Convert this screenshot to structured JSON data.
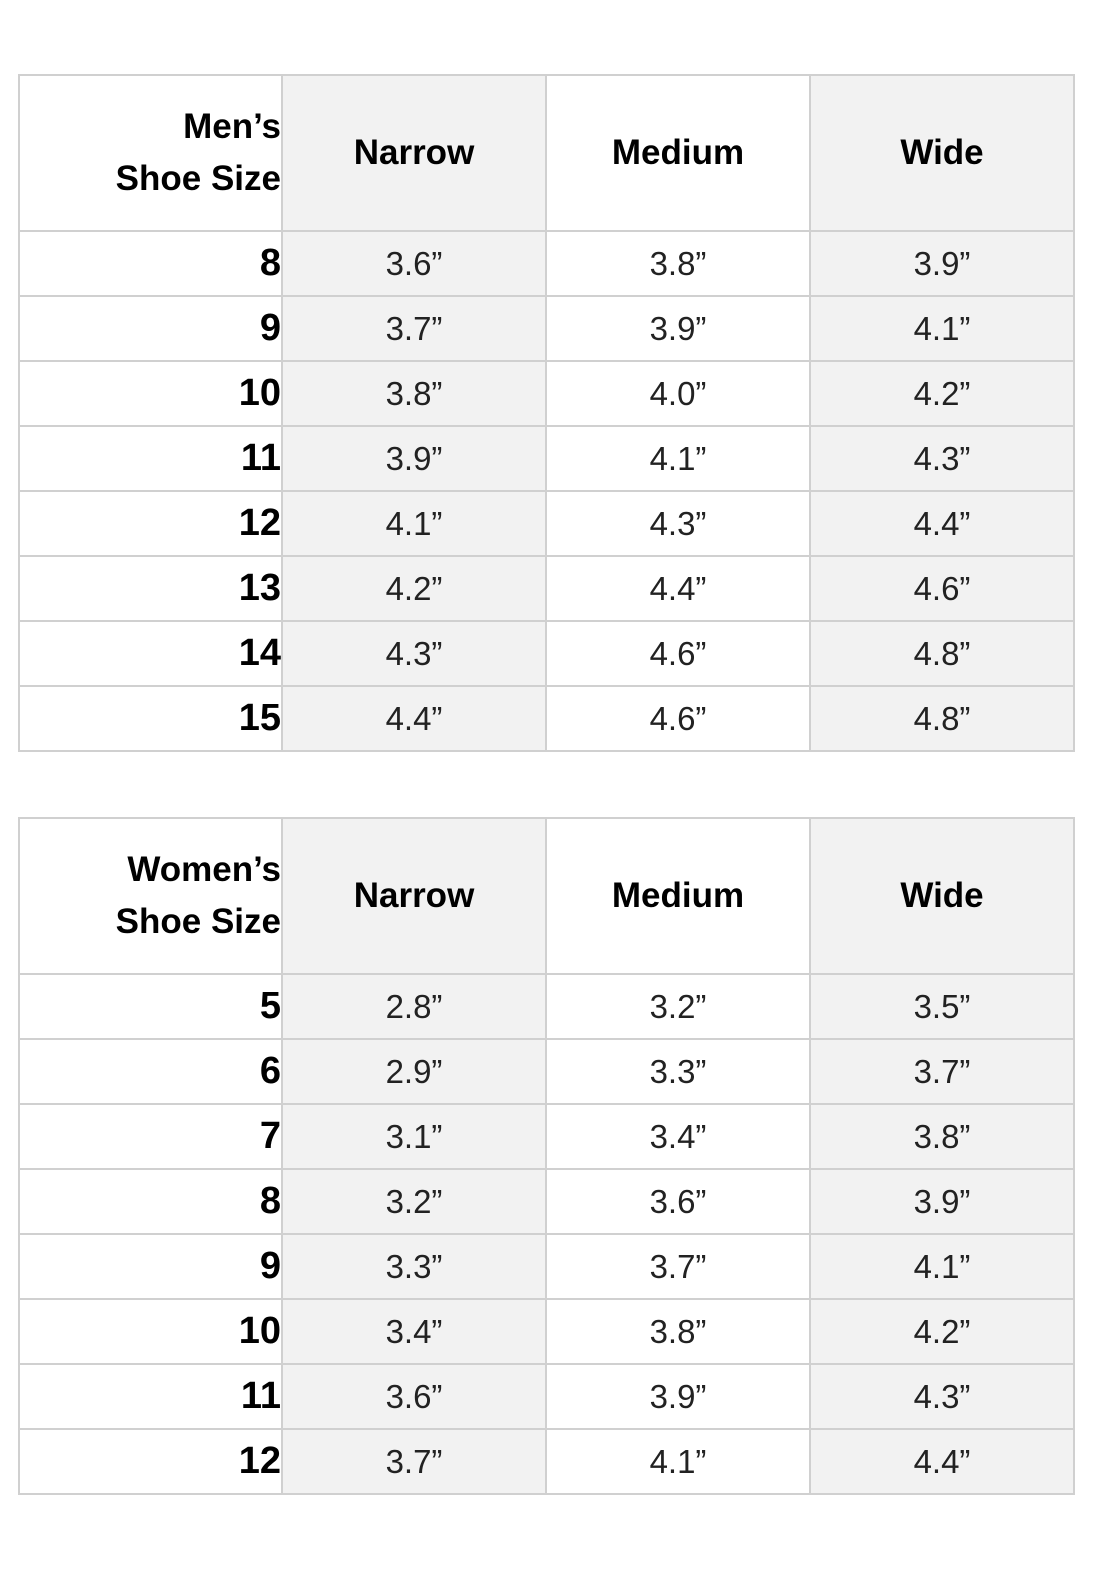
{
  "mens": {
    "header": {
      "size": [
        "Men’s",
        "Shoe Size"
      ],
      "narrow": "Narrow",
      "medium": "Medium",
      "wide": "Wide"
    },
    "rows": [
      [
        "8",
        "3.6”",
        "3.8”",
        "3.9”"
      ],
      [
        "9",
        "3.7”",
        "3.9”",
        "4.1”"
      ],
      [
        "10",
        "3.8”",
        "4.0”",
        "4.2”"
      ],
      [
        "11",
        "3.9”",
        "4.1”",
        "4.3”"
      ],
      [
        "12",
        "4.1”",
        "4.3”",
        "4.4”"
      ],
      [
        "13",
        "4.2”",
        "4.4”",
        "4.6”"
      ],
      [
        "14",
        "4.3”",
        "4.6”",
        "4.8”"
      ],
      [
        "15",
        "4.4”",
        "4.6”",
        "4.8”"
      ]
    ]
  },
  "womens": {
    "header": {
      "size": [
        "Women’s",
        "Shoe Size"
      ],
      "narrow": "Narrow",
      "medium": "Medium",
      "wide": "Wide"
    },
    "rows": [
      [
        "5",
        "2.8”",
        "3.2”",
        "3.5”"
      ],
      [
        "6",
        "2.9”",
        "3.3”",
        "3.7”"
      ],
      [
        "7",
        "3.1”",
        "3.4”",
        "3.8”"
      ],
      [
        "8",
        "3.2”",
        "3.6”",
        "3.9”"
      ],
      [
        "9",
        "3.3”",
        "3.7”",
        "4.1”"
      ],
      [
        "10",
        "3.4”",
        "3.8”",
        "4.2”"
      ],
      [
        "11",
        "3.6”",
        "3.9”",
        "4.3”"
      ],
      [
        "12",
        "3.7”",
        "4.1”",
        "4.4”"
      ]
    ]
  },
  "colors": {
    "shaded_column": "#f2f2f2",
    "border": "#d0d0d0"
  }
}
